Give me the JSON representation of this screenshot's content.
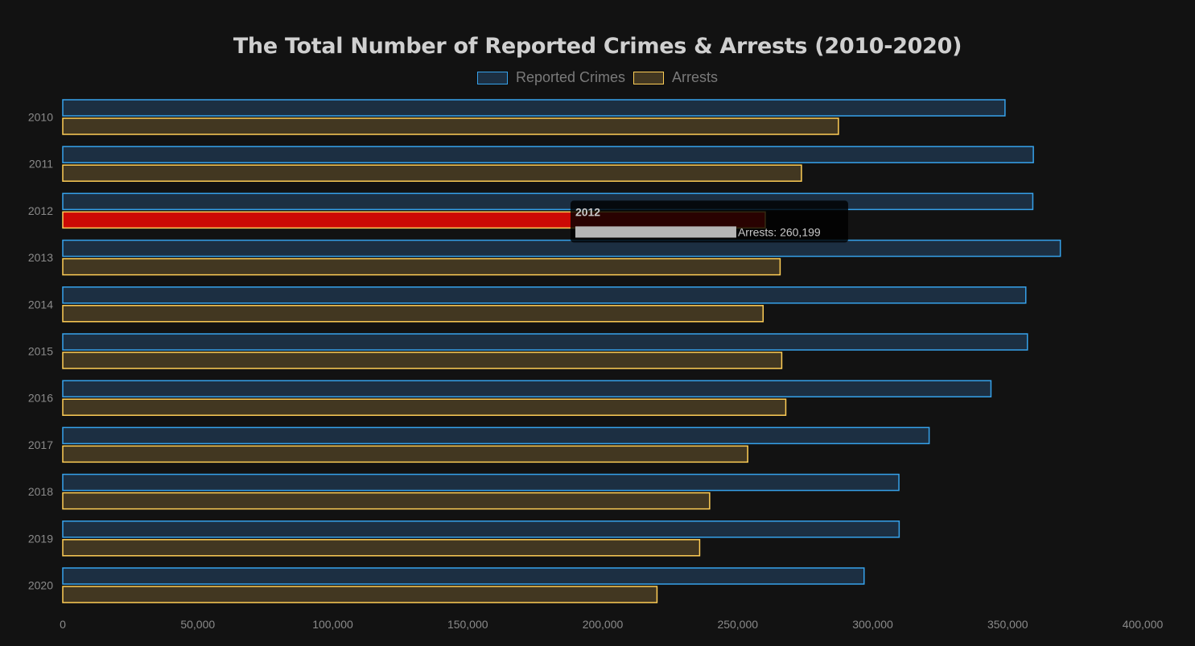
{
  "chart_data": {
    "type": "bar",
    "orientation": "horizontal",
    "title": "The Total Number of Reported Crimes & Arrests (2010-2020)",
    "categories": [
      "2010",
      "2011",
      "2012",
      "2013",
      "2014",
      "2015",
      "2016",
      "2017",
      "2018",
      "2019",
      "2020"
    ],
    "series": [
      {
        "name": "Reported Crimes",
        "color": "#36a2eb",
        "fill": "#1c2f42",
        "values": [
          349000,
          359500,
          359300,
          369500,
          356700,
          357300,
          343800,
          320900,
          309700,
          309800,
          296800
        ]
      },
      {
        "name": "Arrests",
        "color": "#ffce56",
        "fill": "#423721",
        "values": [
          287300,
          273600,
          260199,
          265700,
          259400,
          266300,
          267800,
          253700,
          239600,
          235900,
          220100
        ]
      }
    ],
    "xlim": [
      0,
      400000
    ],
    "xticks": [
      "0",
      "50,000",
      "100,000",
      "150,000",
      "200,000",
      "250,000",
      "300,000",
      "350,000",
      "400,000"
    ],
    "grid": false,
    "legend": "top",
    "highlight": {
      "category": "2012",
      "series": "Arrests",
      "color": "#cc0a05",
      "tooltip_title": "2012",
      "tooltip_text": "Arrests: 260,199"
    }
  }
}
